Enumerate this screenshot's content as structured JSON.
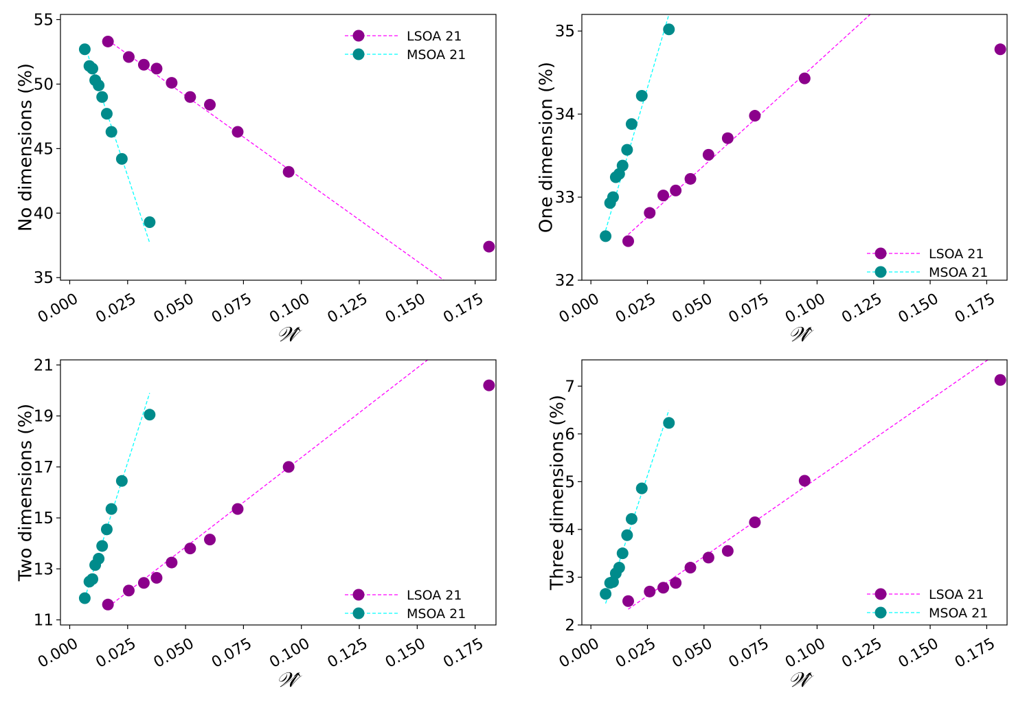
{
  "colors": {
    "lsoa_marker": "#8b008b",
    "lsoa_line": "#ff00ff",
    "msoa_marker": "#008b8b",
    "msoa_line": "#00ffff",
    "axis": "#000000"
  },
  "chart_data": [
    {
      "type": "scatter",
      "title": "",
      "xlabel": "𝒲̂",
      "ylabel": "No dimensions (%)",
      "xlim": [
        -0.004,
        0.184
      ],
      "ylim": [
        34.8,
        55.4
      ],
      "xticks": [
        0.0,
        0.025,
        0.05,
        0.075,
        0.1,
        0.125,
        0.15,
        0.175
      ],
      "xtick_labels": [
        "0.000",
        "0.025",
        "0.050",
        "0.075",
        "0.100",
        "0.125",
        "0.150",
        "0.175"
      ],
      "yticks": [
        35,
        40,
        45,
        50,
        55
      ],
      "ytick_labels": [
        "35",
        "40",
        "45",
        "50",
        "55"
      ],
      "legend_position": "top-right",
      "series": [
        {
          "name": "LSOA 21",
          "points": [
            [
              0.0165,
              53.3
            ],
            [
              0.0255,
              52.1
            ],
            [
              0.032,
              51.5
            ],
            [
              0.0375,
              51.2
            ],
            [
              0.044,
              50.1
            ],
            [
              0.052,
              49.0
            ],
            [
              0.0605,
              48.4
            ],
            [
              0.0725,
              46.3
            ],
            [
              0.0945,
              43.2
            ],
            [
              0.181,
              37.4
            ]
          ],
          "fit": [
            [
              0.0165,
              53.4
            ],
            [
              0.1615,
              34.8
            ]
          ]
        },
        {
          "name": "MSOA 21",
          "points": [
            [
              0.0065,
              52.7
            ],
            [
              0.0085,
              51.4
            ],
            [
              0.0098,
              51.2
            ],
            [
              0.011,
              50.3
            ],
            [
              0.0125,
              49.9
            ],
            [
              0.014,
              49.0
            ],
            [
              0.016,
              47.7
            ],
            [
              0.018,
              46.3
            ],
            [
              0.0225,
              44.2
            ],
            [
              0.0345,
              39.3
            ]
          ],
          "fit": [
            [
              0.0065,
              53.0
            ],
            [
              0.0345,
              37.7
            ]
          ]
        }
      ]
    },
    {
      "type": "scatter",
      "title": "",
      "xlabel": "𝒲̂",
      "ylabel": "One dimension (%)",
      "xlim": [
        -0.004,
        0.184
      ],
      "ylim": [
        32.0,
        35.2
      ],
      "xticks": [
        0.0,
        0.025,
        0.05,
        0.075,
        0.1,
        0.125,
        0.15,
        0.175
      ],
      "xtick_labels": [
        "0.000",
        "0.025",
        "0.050",
        "0.075",
        "0.100",
        "0.125",
        "0.150",
        "0.175"
      ],
      "yticks": [
        32,
        33,
        34,
        35
      ],
      "ytick_labels": [
        "32",
        "33",
        "34",
        "35"
      ],
      "legend_position": "bottom-right",
      "series": [
        {
          "name": "LSOA 21",
          "points": [
            [
              0.0165,
              32.47
            ],
            [
              0.026,
              32.81
            ],
            [
              0.032,
              33.02
            ],
            [
              0.0375,
              33.08
            ],
            [
              0.044,
              33.22
            ],
            [
              0.052,
              33.51
            ],
            [
              0.0605,
              33.71
            ],
            [
              0.0725,
              33.98
            ],
            [
              0.0945,
              34.43
            ],
            [
              0.181,
              34.78
            ]
          ],
          "fit": [
            [
              0.0165,
              32.55
            ],
            [
              0.1235,
              35.2
            ]
          ]
        },
        {
          "name": "MSOA 21",
          "points": [
            [
              0.0065,
              32.53
            ],
            [
              0.0085,
              32.93
            ],
            [
              0.0098,
              33.0
            ],
            [
              0.011,
              33.24
            ],
            [
              0.0125,
              33.28
            ],
            [
              0.014,
              33.38
            ],
            [
              0.016,
              33.57
            ],
            [
              0.018,
              33.88
            ],
            [
              0.0225,
              34.22
            ],
            [
              0.0345,
              35.02
            ]
          ],
          "fit": [
            [
              0.0065,
              32.6
            ],
            [
              0.0345,
              35.2
            ]
          ]
        }
      ]
    },
    {
      "type": "scatter",
      "title": "",
      "xlabel": "𝒲̂",
      "ylabel": "Two dimensions (%)",
      "xlim": [
        -0.004,
        0.184
      ],
      "ylim": [
        10.8,
        21.2
      ],
      "xticks": [
        0.0,
        0.025,
        0.05,
        0.075,
        0.1,
        0.125,
        0.15,
        0.175
      ],
      "xtick_labels": [
        "0.000",
        "0.025",
        "0.050",
        "0.075",
        "0.100",
        "0.125",
        "0.150",
        "0.175"
      ],
      "yticks": [
        11,
        13,
        15,
        17,
        19,
        21
      ],
      "ytick_labels": [
        "11",
        "13",
        "15",
        "17",
        "19",
        "21"
      ],
      "legend_position": "bottom-right",
      "series": [
        {
          "name": "LSOA 21",
          "points": [
            [
              0.0165,
              11.6
            ],
            [
              0.0255,
              12.15
            ],
            [
              0.032,
              12.45
            ],
            [
              0.0375,
              12.65
            ],
            [
              0.044,
              13.25
            ],
            [
              0.052,
              13.8
            ],
            [
              0.0605,
              14.15
            ],
            [
              0.0725,
              15.35
            ],
            [
              0.0945,
              17.0
            ],
            [
              0.181,
              20.2
            ]
          ],
          "fit": [
            [
              0.0165,
              11.5
            ],
            [
              0.1545,
              21.2
            ]
          ]
        },
        {
          "name": "MSOA 21",
          "points": [
            [
              0.0065,
              11.85
            ],
            [
              0.0085,
              12.5
            ],
            [
              0.0098,
              12.6
            ],
            [
              0.011,
              13.15
            ],
            [
              0.0125,
              13.4
            ],
            [
              0.014,
              13.9
            ],
            [
              0.016,
              14.55
            ],
            [
              0.018,
              15.35
            ],
            [
              0.0225,
              16.45
            ],
            [
              0.0345,
              19.05
            ]
          ],
          "fit": [
            [
              0.0065,
              11.85
            ],
            [
              0.0345,
              19.9
            ]
          ]
        }
      ]
    },
    {
      "type": "scatter",
      "title": "",
      "xlabel": "𝒲̂",
      "ylabel": "Three dimensions (%)",
      "xlim": [
        -0.004,
        0.184
      ],
      "ylim": [
        2.0,
        7.55
      ],
      "xticks": [
        0.0,
        0.025,
        0.05,
        0.075,
        0.1,
        0.125,
        0.15,
        0.175
      ],
      "xtick_labels": [
        "0.000",
        "0.025",
        "0.050",
        "0.075",
        "0.100",
        "0.125",
        "0.150",
        "0.175"
      ],
      "yticks": [
        2,
        3,
        4,
        5,
        6,
        7
      ],
      "ytick_labels": [
        "2",
        "3",
        "4",
        "5",
        "6",
        "7"
      ],
      "legend_position": "bottom-right",
      "series": [
        {
          "name": "LSOA 21",
          "points": [
            [
              0.0165,
              2.5
            ],
            [
              0.026,
              2.7
            ],
            [
              0.032,
              2.78
            ],
            [
              0.0375,
              2.88
            ],
            [
              0.044,
              3.2
            ],
            [
              0.052,
              3.41
            ],
            [
              0.0605,
              3.55
            ],
            [
              0.0725,
              4.15
            ],
            [
              0.0945,
              5.02
            ],
            [
              0.181,
              7.13
            ]
          ],
          "fit": [
            [
              0.0165,
              2.33
            ],
            [
              0.1755,
              7.55
            ]
          ]
        },
        {
          "name": "MSOA 21",
          "points": [
            [
              0.0065,
              2.65
            ],
            [
              0.0085,
              2.88
            ],
            [
              0.0098,
              2.9
            ],
            [
              0.011,
              3.08
            ],
            [
              0.0125,
              3.2
            ],
            [
              0.014,
              3.5
            ],
            [
              0.016,
              3.88
            ],
            [
              0.018,
              4.22
            ],
            [
              0.0225,
              4.86
            ],
            [
              0.0345,
              6.23
            ]
          ],
          "fit": [
            [
              0.0065,
              2.45
            ],
            [
              0.0345,
              6.5
            ]
          ]
        }
      ]
    }
  ]
}
